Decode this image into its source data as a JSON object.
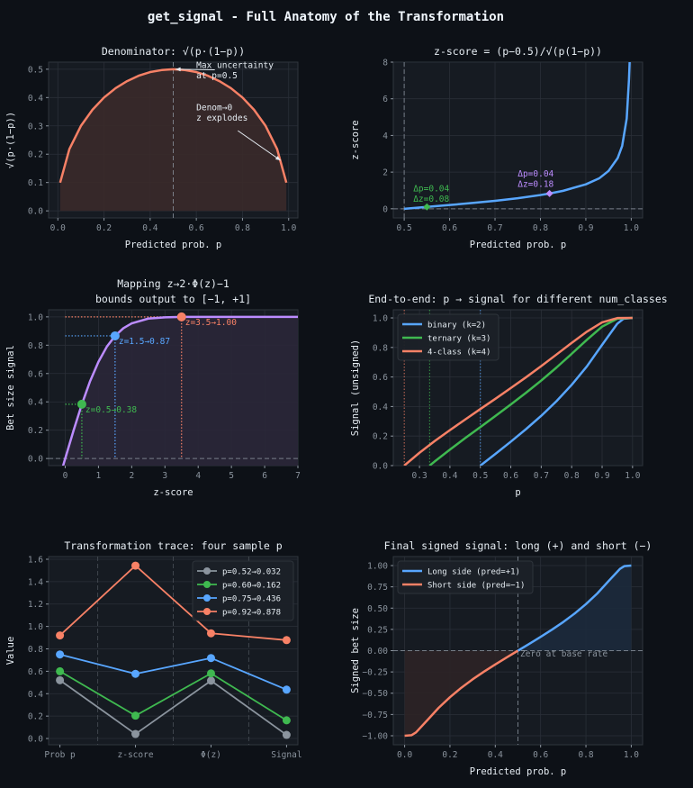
{
  "figure": {
    "title": "get_signal - Full Anatomy of the Transformation"
  },
  "colors": {
    "background": "#0d1117",
    "axes": "#161b22",
    "grid": "#2a2f38",
    "orange": "#f78166",
    "blue": "#58a6ff",
    "green": "#3fb950",
    "purple": "#bc8cff",
    "gray": "#8b949e"
  },
  "chart_data": [
    {
      "type": "area",
      "title": [
        "Denominator: √(p·(1−p))"
      ],
      "xlabel": "Predicted prob. p",
      "ylabel": "√(p·(1−p))",
      "xlim": [
        -0.04,
        1.04
      ],
      "ylim": [
        -0.025,
        0.525
      ],
      "grid": true,
      "xticks": [
        0,
        0.2,
        0.4,
        0.6,
        0.8,
        1.0
      ],
      "xtick_labels": [
        "0.0",
        "0.2",
        "0.4",
        "0.6",
        "0.8",
        "1.0"
      ],
      "yticks": [
        0,
        0.1,
        0.2,
        0.3,
        0.4,
        0.5
      ],
      "ytick_labels": [
        "0.0",
        "0.1",
        "0.2",
        "0.3",
        "0.4",
        "0.5"
      ],
      "vlines": [
        {
          "x": 0.5,
          "style": "dashed",
          "color": "#8b949e"
        }
      ],
      "series": [
        {
          "color": "#f78166",
          "fill": "#3a2a2a",
          "x": [
            0.01,
            0.05,
            0.1,
            0.15,
            0.2,
            0.25,
            0.3,
            0.35,
            0.4,
            0.45,
            0.5,
            0.55,
            0.6,
            0.65,
            0.7,
            0.75,
            0.8,
            0.85,
            0.9,
            0.95,
            0.99
          ],
          "y": [
            0.0995,
            0.218,
            0.3,
            0.357,
            0.4,
            0.433,
            0.458,
            0.477,
            0.49,
            0.497,
            0.5,
            0.497,
            0.49,
            0.477,
            0.458,
            0.433,
            0.4,
            0.357,
            0.3,
            0.218,
            0.0995
          ]
        }
      ],
      "annotations": [
        {
          "lines": [
            "Max uncertainty",
            "at p=0.5"
          ],
          "x": 0.6,
          "y": 0.505,
          "color": "#e6edf3",
          "arrow_from": [
            0.68,
            0.498
          ],
          "arrow_to": [
            0.51,
            0.5
          ]
        },
        {
          "lines": [
            "Denom→0",
            "z explodes"
          ],
          "x": 0.6,
          "y": 0.355,
          "color": "#e6edf3",
          "arrow_from": [
            0.78,
            0.283
          ],
          "arrow_to": [
            0.965,
            0.178
          ]
        }
      ]
    },
    {
      "type": "line",
      "title": [
        "z-score = (p−0.5)/√(p(1−p))"
      ],
      "xlabel": "Predicted prob. p",
      "ylabel": "z-score",
      "xlim": [
        0.476,
        1.025
      ],
      "ylim": [
        -0.5,
        8
      ],
      "grid": true,
      "xticks": [
        0.5,
        0.6,
        0.7,
        0.8,
        0.9,
        1.0
      ],
      "xtick_labels": [
        "0.5",
        "0.6",
        "0.7",
        "0.8",
        "0.9",
        "1.0"
      ],
      "yticks": [
        0,
        2,
        4,
        6,
        8
      ],
      "ytick_labels": [
        "0",
        "2",
        "4",
        "6",
        "8"
      ],
      "vlines": [
        {
          "x": 0.5,
          "style": "dashed",
          "color": "#8b949e"
        }
      ],
      "hlines": [
        {
          "y": 0,
          "style": "dashed",
          "color": "#8b949e"
        }
      ],
      "series": [
        {
          "color": "#58a6ff",
          "x": [
            0.5,
            0.55,
            0.6,
            0.65,
            0.7,
            0.75,
            0.8,
            0.82,
            0.85,
            0.9,
            0.93,
            0.95,
            0.97,
            0.98,
            0.99,
            0.995,
            0.9965
          ],
          "y": [
            0,
            0.1005,
            0.204,
            0.3145,
            0.436,
            0.577,
            0.75,
            0.832,
            0.98,
            1.333,
            1.67,
            2.065,
            2.76,
            3.43,
            4.92,
            7.05,
            8.0
          ]
        }
      ],
      "markers": [
        {
          "x": 0.55,
          "y": 0.1005,
          "color": "#3fb950",
          "shape": "diamond"
        },
        {
          "x": 0.82,
          "y": 0.832,
          "color": "#bc8cff",
          "shape": "diamond"
        }
      ],
      "annotations": [
        {
          "lines": [
            "Δp=0.04",
            "Δz=0.08"
          ],
          "x": 0.52,
          "y": 0.95,
          "color": "#3fb950"
        },
        {
          "lines": [
            "Δp=0.04",
            "Δz=0.18"
          ],
          "x": 0.75,
          "y": 1.75,
          "color": "#bc8cff"
        }
      ]
    },
    {
      "type": "line",
      "title": [
        "Mapping z→2·Φ(z)−1",
        "bounds output to [−1, +1]"
      ],
      "xlabel": "z-score",
      "ylabel": "Bet size signal",
      "xlim": [
        -0.5,
        7
      ],
      "ylim": [
        -0.05,
        1.05
      ],
      "grid": true,
      "xticks": [
        0,
        1,
        2,
        3,
        4,
        5,
        6,
        7
      ],
      "xtick_labels": [
        "0",
        "1",
        "2",
        "3",
        "4",
        "5",
        "6",
        "7"
      ],
      "yticks": [
        0,
        0.2,
        0.4,
        0.6,
        0.8,
        1.0
      ],
      "ytick_labels": [
        "0.0",
        "0.2",
        "0.4",
        "0.6",
        "0.8",
        "1.0"
      ],
      "hlines": [
        {
          "y": 0,
          "style": "dashed",
          "color": "#8b949e"
        }
      ],
      "series": [
        {
          "color": "#bc8cff",
          "fill": "#2a2738",
          "x": [
            -0.1,
            0,
            0.25,
            0.5,
            0.75,
            1,
            1.25,
            1.5,
            1.75,
            2,
            2.5,
            3,
            3.5,
            4,
            5,
            6,
            7
          ],
          "y": [
            -0.08,
            0,
            0.197,
            0.383,
            0.547,
            0.683,
            0.789,
            0.866,
            0.92,
            0.954,
            0.988,
            0.997,
            1.0,
            1.0,
            1.0,
            1.0,
            1.0
          ]
        }
      ],
      "markers": [
        {
          "x": 0.5,
          "y": 0.383,
          "color": "#3fb950",
          "shape": "circle",
          "guides": true,
          "label": "z=0.5→0.38"
        },
        {
          "x": 1.5,
          "y": 0.866,
          "color": "#58a6ff",
          "shape": "circle",
          "guides": true,
          "label": "z=1.5→0.87"
        },
        {
          "x": 3.5,
          "y": 1.0,
          "color": "#f78166",
          "shape": "circle",
          "guides": true,
          "label": "z=3.5→1.00"
        }
      ]
    },
    {
      "type": "line",
      "title": [
        "End-to-end: p → signal for different num_classes"
      ],
      "xlabel": "p",
      "ylabel": "Signal (unsigned)",
      "xlim": [
        0.214,
        1.033
      ],
      "ylim": [
        0,
        1.055
      ],
      "grid": true,
      "xticks": [
        0.3,
        0.4,
        0.5,
        0.6,
        0.7,
        0.8,
        0.9,
        1.0
      ],
      "xtick_labels": [
        "0.3",
        "0.4",
        "0.5",
        "0.6",
        "0.7",
        "0.8",
        "0.9",
        "1.0"
      ],
      "yticks": [
        0,
        0.2,
        0.4,
        0.6,
        0.8,
        1.0
      ],
      "ytick_labels": [
        "0.0",
        "0.2",
        "0.4",
        "0.6",
        "0.8",
        "1.0"
      ],
      "vlines": [
        {
          "x": 0.25,
          "style": "dotted",
          "color": "#f78166"
        },
        {
          "x": 0.3333,
          "style": "dotted",
          "color": "#3fb950"
        },
        {
          "x": 0.5,
          "style": "dotted",
          "color": "#58a6ff"
        }
      ],
      "legend": "top-left",
      "series": [
        {
          "name": "binary (k=2)",
          "color": "#58a6ff",
          "x": [
            0.5,
            0.55,
            0.6,
            0.65,
            0.7,
            0.75,
            0.8,
            0.85,
            0.9,
            0.95,
            0.97,
            1.0
          ],
          "y": [
            0,
            0.08,
            0.162,
            0.247,
            0.337,
            0.436,
            0.547,
            0.672,
            0.818,
            0.961,
            0.994,
            1.0
          ]
        },
        {
          "name": "ternary (k=3)",
          "color": "#3fb950",
          "x": [
            0.3333,
            0.35,
            0.4,
            0.45,
            0.5,
            0.55,
            0.6,
            0.65,
            0.7,
            0.75,
            0.8,
            0.85,
            0.9,
            0.95,
            1.0
          ],
          "y": [
            0,
            0.028,
            0.108,
            0.186,
            0.261,
            0.337,
            0.414,
            0.493,
            0.576,
            0.664,
            0.757,
            0.852,
            0.941,
            0.995,
            1.0
          ]
        },
        {
          "name": "4-class (k=4)",
          "color": "#f78166",
          "x": [
            0.25,
            0.3,
            0.35,
            0.4,
            0.45,
            0.5,
            0.55,
            0.6,
            0.65,
            0.7,
            0.75,
            0.8,
            0.85,
            0.9,
            0.95,
            1.0
          ],
          "y": [
            0,
            0.087,
            0.166,
            0.24,
            0.312,
            0.383,
            0.453,
            0.525,
            0.598,
            0.674,
            0.752,
            0.831,
            0.907,
            0.97,
            0.999,
            1.0
          ]
        }
      ]
    },
    {
      "type": "line",
      "title": [
        "Transformation trace: four sample p"
      ],
      "xlabel": "",
      "ylabel": "Value",
      "categories": [
        "Prob p",
        "z-score",
        "Φ(z)",
        "Signal"
      ],
      "xlim": [
        -0.15,
        3.15
      ],
      "ylim": [
        -0.056,
        1.624
      ],
      "grid": true,
      "yticks": [
        0,
        0.2,
        0.4,
        0.6,
        0.8,
        1.0,
        1.2,
        1.4,
        1.6
      ],
      "ytick_labels": [
        "0.0",
        "0.2",
        "0.4",
        "0.6",
        "0.8",
        "1.0",
        "1.2",
        "1.4",
        "1.6"
      ],
      "vlines": [
        {
          "x": 0.5,
          "style": "dashed",
          "color": "#4a5058"
        },
        {
          "x": 1.5,
          "style": "dashed",
          "color": "#4a5058"
        },
        {
          "x": 2.5,
          "style": "dashed",
          "color": "#4a5058"
        }
      ],
      "legend": "top-right",
      "series": [
        {
          "name": "p=0.52→0.032",
          "color": "#8b949e",
          "marker": true,
          "values": [
            0.52,
            0.04,
            0.516,
            0.032
          ]
        },
        {
          "name": "p=0.60→0.162",
          "color": "#3fb950",
          "marker": true,
          "values": [
            0.6,
            0.204,
            0.581,
            0.162
          ]
        },
        {
          "name": "p=0.75→0.436",
          "color": "#58a6ff",
          "marker": true,
          "values": [
            0.75,
            0.577,
            0.718,
            0.436
          ]
        },
        {
          "name": "p=0.92→0.878",
          "color": "#f78166",
          "marker": true,
          "values": [
            0.92,
            1.543,
            0.939,
            0.878
          ]
        }
      ]
    },
    {
      "type": "area",
      "title": [
        "Final signed signal: long (+) and short (−)"
      ],
      "xlabel": "Predicted prob. p",
      "ylabel": "Signed bet size",
      "xlim": [
        -0.05,
        1.05
      ],
      "ylim": [
        -1.106,
        1.106
      ],
      "grid": true,
      "xticks": [
        0,
        0.2,
        0.4,
        0.6,
        0.8,
        1.0
      ],
      "xtick_labels": [
        "0.0",
        "0.2",
        "0.4",
        "0.6",
        "0.8",
        "1.0"
      ],
      "yticks": [
        -1,
        -0.75,
        -0.5,
        -0.25,
        0,
        0.25,
        0.5,
        0.75,
        1
      ],
      "ytick_labels": [
        "−1.00",
        "−0.75",
        "−0.50",
        "−0.25",
        "0.00",
        "0.25",
        "0.50",
        "0.75",
        "1.00"
      ],
      "vlines": [
        {
          "x": 0.5,
          "style": "dashed",
          "color": "#8b949e"
        }
      ],
      "hlines": [
        {
          "y": 0,
          "style": "dashed",
          "color": "#8b949e"
        }
      ],
      "legend": "top-left",
      "series": [
        {
          "name": "Long side (pred=+1)",
          "color": "#58a6ff",
          "fill": "#1c2a3c",
          "x": [
            0.5,
            0.55,
            0.6,
            0.65,
            0.7,
            0.75,
            0.8,
            0.85,
            0.9,
            0.95,
            0.97,
            1.0
          ],
          "y": [
            0,
            0.08,
            0.162,
            0.247,
            0.337,
            0.436,
            0.547,
            0.672,
            0.818,
            0.961,
            0.994,
            1.0
          ]
        },
        {
          "name": "Short side (pred=−1)",
          "color": "#f78166",
          "fill": "#2c2326",
          "x": [
            0,
            0.03,
            0.05,
            0.1,
            0.15,
            0.2,
            0.25,
            0.3,
            0.35,
            0.4,
            0.45,
            0.5
          ],
          "y": [
            -1,
            -0.994,
            -0.961,
            -0.818,
            -0.672,
            -0.547,
            -0.436,
            -0.337,
            -0.247,
            -0.162,
            -0.08,
            0
          ]
        }
      ],
      "annotations": [
        {
          "lines": [
            "Zero at base rate"
          ],
          "x": 0.51,
          "y": -0.07,
          "color": "#8b949e"
        }
      ]
    }
  ]
}
